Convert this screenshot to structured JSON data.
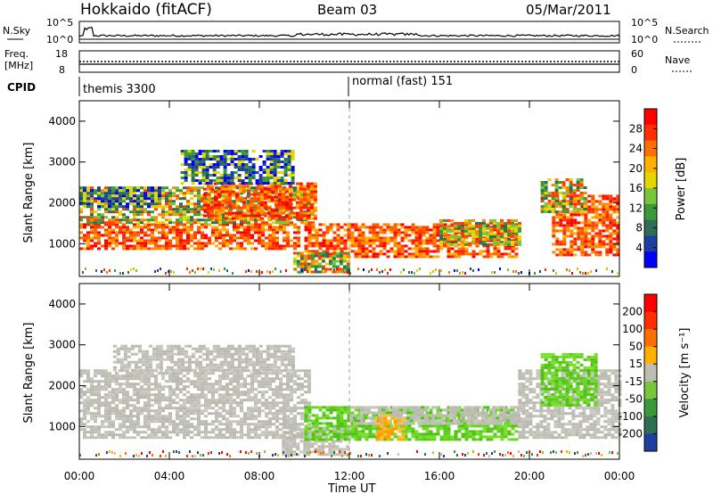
{
  "header": {
    "station": "Hokkaido (fitACF)",
    "beam": "Beam 03",
    "date": "05/Mar/2011"
  },
  "top_panels": {
    "nsky_label": "N.Sky",
    "nsearch_label": "N.Search",
    "freq_label_line1": "Freq.",
    "freq_label_line2": "[MHz]",
    "nave_label": "Nave",
    "cpid_label": "CPID",
    "noise_left_ticks": [
      "10^5",
      "10^0"
    ],
    "noise_right_ticks": [
      "10^5",
      "10^0"
    ],
    "freq_left_ticks": [
      "18",
      "8"
    ],
    "nave_right_ticks": [
      "60",
      "0"
    ],
    "cpid_segments": [
      {
        "label": "themis 3300",
        "start": "00:00"
      },
      {
        "label": "normal (fast) 151",
        "start": "12:00"
      }
    ]
  },
  "chart_data": [
    {
      "type": "heatmap",
      "name": "power",
      "ylabel": "Slant Range [km]",
      "xlabel": "Time UT",
      "x_ticks": [
        "00:00",
        "04:00",
        "08:00",
        "12:00",
        "16:00",
        "20:00",
        "00:00"
      ],
      "y_ticks": [
        "1000",
        "2000",
        "3000",
        "4000"
      ],
      "ylim": [
        200,
        4500
      ],
      "xlim_hours": [
        0,
        24
      ],
      "colorbar": {
        "label": "Power [dB]",
        "ticks": [
          "4",
          "8",
          "12",
          "16",
          "20",
          "24",
          "28"
        ],
        "colors": [
          "#0000ff",
          "#1f3fa0",
          "#2e6e55",
          "#3a9a3a",
          "#7ac53a",
          "#e6d600",
          "#ffb000",
          "#ff7000",
          "#ff3000",
          "#ff0000"
        ]
      },
      "regions": [
        {
          "t0": 0.0,
          "t1": 9.8,
          "r0": 900,
          "r1": 1500,
          "level": "high"
        },
        {
          "t0": 0.0,
          "t1": 10.3,
          "r0": 1500,
          "r1": 2400,
          "level": "mid"
        },
        {
          "t0": 0.0,
          "t1": 3.5,
          "r0": 1900,
          "r1": 2400,
          "level": "low"
        },
        {
          "t0": 5.5,
          "t1": 10.5,
          "r0": 1600,
          "r1": 2500,
          "level": "high"
        },
        {
          "t0": 4.5,
          "t1": 9.5,
          "r0": 2500,
          "r1": 3300,
          "level": "low"
        },
        {
          "t0": 10.0,
          "t1": 19.5,
          "r0": 700,
          "r1": 1500,
          "level": "high"
        },
        {
          "t0": 9.5,
          "t1": 12.0,
          "r0": 300,
          "r1": 800,
          "level": "mid"
        },
        {
          "t0": 16.0,
          "t1": 19.5,
          "r0": 1000,
          "r1": 1600,
          "level": "mid"
        },
        {
          "t0": 21.0,
          "t1": 24.0,
          "r0": 700,
          "r1": 2200,
          "level": "high"
        },
        {
          "t0": 20.5,
          "t1": 22.5,
          "r0": 1800,
          "r1": 2600,
          "level": "mid"
        }
      ]
    },
    {
      "type": "heatmap",
      "name": "velocity",
      "ylabel": "Slant Range [km]",
      "xlabel": "Time UT",
      "x_ticks": [
        "00:00",
        "04:00",
        "08:00",
        "12:00",
        "16:00",
        "20:00",
        "00:00"
      ],
      "y_ticks": [
        "1000",
        "2000",
        "3000",
        "4000"
      ],
      "ylim": [
        200,
        4500
      ],
      "xlim_hours": [
        0,
        24
      ],
      "colorbar": {
        "label": "Velocity [m s⁻¹]",
        "ticks": [
          "200",
          "100",
          "50",
          "15",
          "-15",
          "-50",
          "-100",
          "-200"
        ],
        "colors": [
          "#1f3fa0",
          "#2e6e55",
          "#3a9a3a",
          "#7ac53a",
          "#bebeb4",
          "#ffb000",
          "#ff7000",
          "#ff3000",
          "#ff0000"
        ]
      },
      "regions": [
        {
          "t0": 0.0,
          "t1": 10.2,
          "r0": 700,
          "r1": 2400,
          "level": "gray"
        },
        {
          "t0": 1.5,
          "t1": 9.5,
          "r0": 2400,
          "r1": 3000,
          "level": "gray"
        },
        {
          "t0": 9.0,
          "t1": 12.0,
          "r0": 300,
          "r1": 1000,
          "level": "gray"
        },
        {
          "t0": 10.0,
          "t1": 19.5,
          "r0": 700,
          "r1": 1500,
          "level": "green"
        },
        {
          "t0": 12.0,
          "t1": 19.5,
          "r0": 1100,
          "r1": 1500,
          "level": "gray"
        },
        {
          "t0": 13.2,
          "t1": 14.4,
          "r0": 700,
          "r1": 1300,
          "level": "orange"
        },
        {
          "t0": 19.5,
          "t1": 24.0,
          "r0": 700,
          "r1": 2400,
          "level": "gray"
        },
        {
          "t0": 20.5,
          "t1": 23.0,
          "r0": 1500,
          "r1": 2800,
          "level": "green"
        }
      ]
    }
  ]
}
